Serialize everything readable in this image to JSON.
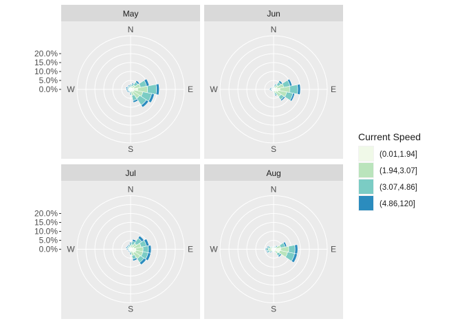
{
  "chart_data": {
    "type": "windrose",
    "legend": {
      "title": "Current Speed",
      "placement": "right",
      "entries": [
        {
          "label": "(0.01,1.94]",
          "color": "#f0f9e8"
        },
        {
          "label": "(1.94,3.07]",
          "color": "#bae4bc"
        },
        {
          "label": "(3.07,4.86]",
          "color": "#7bccc4"
        },
        {
          "label": "(4.86,120]",
          "color": "#2b8cbe"
        }
      ]
    },
    "directions": [
      "N",
      "NNE",
      "NE",
      "ENE",
      "E",
      "ESE",
      "SE",
      "SSE",
      "S",
      "SSW",
      "SW",
      "WSW",
      "W",
      "WNW",
      "NW",
      "NNW"
    ],
    "compass_labels": [
      "N",
      "E",
      "S",
      "W"
    ],
    "y_ticks": [
      0,
      5,
      10,
      15,
      20
    ],
    "y_tick_labels": [
      "0.0%",
      "5.0%",
      "10.0%",
      "15.0%",
      "20.0%"
    ],
    "r_max": 30,
    "panels": [
      {
        "name": "May",
        "stacks": [
          [
            0.5,
            0.8,
            0.8,
            0.5
          ],
          [
            0.7,
            1.2,
            1.1,
            0.6
          ],
          [
            1.0,
            2.0,
            2.0,
            1.0
          ],
          [
            2.0,
            3.6,
            3.5,
            1.5
          ],
          [
            4.0,
            5.5,
            5.0,
            1.5
          ],
          [
            2.0,
            5.0,
            5.0,
            1.5
          ],
          [
            1.6,
            4.5,
            4.5,
            1.5
          ],
          [
            1.0,
            2.5,
            3.0,
            1.0
          ],
          [
            0.5,
            1.0,
            1.0,
            0.5
          ],
          [
            0.3,
            0.6,
            0.5,
            0.5
          ],
          [
            0.5,
            0.5,
            0.6,
            0.6
          ],
          [
            0.5,
            0.6,
            0.6,
            0.6
          ],
          [
            0.4,
            0.6,
            0.6,
            0.8
          ],
          [
            0.5,
            0.6,
            0.8,
            0.8
          ],
          [
            0.5,
            0.6,
            0.7,
            0.5
          ],
          [
            0.5,
            0.8,
            0.8,
            0.5
          ]
        ]
      },
      {
        "name": "Jun",
        "stacks": [
          [
            0.3,
            0.5,
            0.5,
            0.3
          ],
          [
            0.6,
            1.0,
            1.0,
            0.5
          ],
          [
            1.0,
            2.0,
            2.0,
            1.0
          ],
          [
            2.0,
            3.8,
            3.5,
            1.2
          ],
          [
            3.5,
            5.5,
            4.5,
            1.5
          ],
          [
            2.5,
            5.0,
            3.5,
            1.0
          ],
          [
            1.5,
            3.5,
            2.0,
            0.8
          ],
          [
            0.7,
            1.5,
            1.0,
            0.5
          ],
          [
            0.3,
            0.5,
            0.4,
            0.3
          ],
          [
            0.2,
            0.3,
            0.3,
            0.2
          ],
          [
            0.3,
            0.3,
            0.3,
            0.2
          ],
          [
            0.3,
            0.4,
            0.5,
            0.5
          ],
          [
            0.3,
            0.5,
            0.7,
            0.7
          ],
          [
            0.3,
            0.5,
            0.6,
            0.6
          ],
          [
            0.3,
            0.4,
            0.5,
            0.4
          ],
          [
            0.3,
            0.4,
            0.4,
            0.3
          ]
        ]
      },
      {
        "name": "Jul",
        "stacks": [
          [
            0.5,
            1.5,
            1.2,
            0.6
          ],
          [
            0.7,
            2.0,
            2.0,
            1.0
          ],
          [
            1.0,
            3.0,
            3.5,
            1.5
          ],
          [
            2.0,
            4.0,
            3.0,
            1.5
          ],
          [
            3.0,
            4.0,
            3.0,
            1.5
          ],
          [
            3.0,
            4.0,
            3.0,
            1.5
          ],
          [
            2.5,
            4.0,
            2.5,
            1.5
          ],
          [
            1.2,
            2.5,
            2.0,
            1.0
          ],
          [
            0.5,
            1.0,
            1.0,
            0.5
          ],
          [
            0.3,
            0.6,
            0.5,
            0.4
          ],
          [
            0.3,
            0.5,
            0.5,
            0.5
          ],
          [
            0.3,
            0.5,
            0.5,
            0.5
          ],
          [
            0.4,
            0.5,
            0.7,
            0.6
          ],
          [
            0.5,
            0.8,
            0.8,
            0.6
          ],
          [
            0.5,
            0.8,
            0.8,
            0.5
          ],
          [
            0.5,
            0.9,
            0.8,
            0.5
          ]
        ]
      },
      {
        "name": "Aug",
        "stacks": [
          [
            0.3,
            0.4,
            0.4,
            0.3
          ],
          [
            0.4,
            0.6,
            0.6,
            0.3
          ],
          [
            0.5,
            0.8,
            0.8,
            0.5
          ],
          [
            1.5,
            2.5,
            2.5,
            1.0
          ],
          [
            4.0,
            4.5,
            3.5,
            1.5
          ],
          [
            3.5,
            4.5,
            4.0,
            1.5
          ],
          [
            1.0,
            2.0,
            1.5,
            0.8
          ],
          [
            0.4,
            0.6,
            0.5,
            0.3
          ],
          [
            0.3,
            0.4,
            0.3,
            0.2
          ],
          [
            0.3,
            0.4,
            0.3,
            0.2
          ],
          [
            0.5,
            0.8,
            0.7,
            0.5
          ],
          [
            1.0,
            1.5,
            1.0,
            0.5
          ],
          [
            1.5,
            1.5,
            1.0,
            0.5
          ],
          [
            1.0,
            1.2,
            1.0,
            0.5
          ],
          [
            0.5,
            0.7,
            0.6,
            0.3
          ],
          [
            0.3,
            0.4,
            0.4,
            0.3
          ]
        ]
      }
    ]
  }
}
